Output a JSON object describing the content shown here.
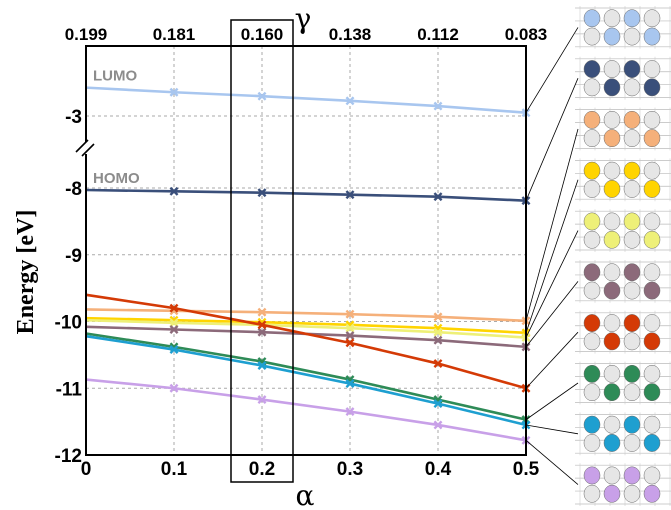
{
  "chart_data": {
    "type": "line",
    "title": "",
    "xlabel": "α",
    "ylabel": "Energy [eV]",
    "top_axis_label": "γ",
    "x": [
      0,
      0.1,
      0.2,
      0.3,
      0.4,
      0.5
    ],
    "x_tick_labels": [
      "0",
      "0.1",
      "0.2",
      "0.3",
      "0.4",
      "0.5"
    ],
    "top_tick_labels": [
      "0.199",
      "0.181",
      "0.160",
      "0.138",
      "0.112",
      "0.083"
    ],
    "y_tick_labels": [
      "-3",
      "-8",
      "-9",
      "-10",
      "-11",
      "-12"
    ],
    "xlim": [
      0,
      0.5
    ],
    "y_axis_break": "between -3 and -8",
    "highlighted_x": 0.2,
    "grid": true,
    "level_labels": [
      {
        "text": "LUMO",
        "color": "#8c8c8c"
      },
      {
        "text": "HOMO",
        "color": "#8c8c8c"
      }
    ],
    "series": [
      {
        "color": "#a8c6ef",
        "values": [
          -2.57,
          -2.64,
          -2.7,
          -2.77,
          -2.85,
          -2.95
        ]
      },
      {
        "color": "#3a4f7a",
        "values": [
          -8.03,
          -8.05,
          -8.07,
          -8.1,
          -8.13,
          -8.19
        ]
      },
      {
        "color": "#f5b07a",
        "values": [
          -9.82,
          -9.84,
          -9.86,
          -9.89,
          -9.93,
          -9.99
        ]
      },
      {
        "color": "#ffd400",
        "values": [
          -9.95,
          -9.98,
          -10.01,
          -10.05,
          -10.1,
          -10.17
        ]
      },
      {
        "color": "#eef078",
        "values": [
          -9.98,
          -10.02,
          -10.05,
          -10.1,
          -10.16,
          -10.24
        ]
      },
      {
        "color": "#8c6a7a",
        "values": [
          -10.08,
          -10.12,
          -10.16,
          -10.21,
          -10.28,
          -10.38
        ]
      },
      {
        "color": "#d43a06",
        "values": [
          -9.6,
          -9.8,
          -10.05,
          -10.32,
          -10.63,
          -11.0
        ]
      },
      {
        "color": "#2e8b57",
        "values": [
          -10.18,
          -10.38,
          -10.6,
          -10.87,
          -11.17,
          -11.47
        ]
      },
      {
        "color": "#1e9fd0",
        "values": [
          -10.22,
          -10.42,
          -10.66,
          -10.93,
          -11.23,
          -11.55
        ]
      },
      {
        "color": "#c8a0e8",
        "values": [
          -10.87,
          -11.0,
          -11.17,
          -11.35,
          -11.55,
          -11.78
        ]
      }
    ]
  }
}
